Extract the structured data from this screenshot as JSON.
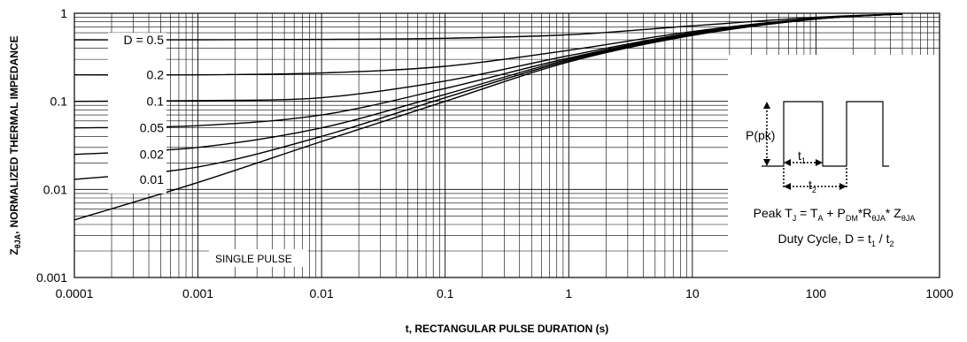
{
  "chart_data": {
    "type": "line",
    "xlabel": "t, RECTANGULAR PULSE DURATION (s)",
    "ylabel": "NORMALIZED THERMAL IMPEDANCE",
    "ylabel_symbol": "Z",
    "ylabel_symbol_sub": "θJA",
    "ylabel_sep": ",",
    "x_scale": "log",
    "y_scale": "log",
    "xlim": [
      0.0001,
      1000
    ],
    "ylim": [
      0.001,
      1
    ],
    "grid": true,
    "x_ticks": [
      {
        "value": 0.0001,
        "label": "0.0001"
      },
      {
        "value": 0.001,
        "label": "0.001"
      },
      {
        "value": 0.01,
        "label": "0.01"
      },
      {
        "value": 0.1,
        "label": "0.1"
      },
      {
        "value": 1,
        "label": "1"
      },
      {
        "value": 10,
        "label": "10"
      },
      {
        "value": 100,
        "label": "100"
      },
      {
        "value": 1000,
        "label": "1000"
      }
    ],
    "y_ticks": [
      {
        "value": 1,
        "label": "1"
      },
      {
        "value": 0.1,
        "label": "0.1"
      },
      {
        "value": 0.01,
        "label": "0.01"
      },
      {
        "value": 0.001,
        "label": "0.001"
      }
    ],
    "legend_prefix": "D = ",
    "series": [
      {
        "name": "0.5",
        "label_y": 0.5,
        "x": [
          0.0001,
          0.001,
          0.01,
          0.1,
          1,
          10,
          100,
          500
        ],
        "values": [
          0.5,
          0.5,
          0.505,
          0.52,
          0.57,
          0.72,
          0.9,
          0.98
        ]
      },
      {
        "name": "0.2",
        "label_y": 0.2,
        "x": [
          0.0001,
          0.001,
          0.01,
          0.1,
          1,
          10,
          100,
          500
        ],
        "values": [
          0.2,
          0.2,
          0.21,
          0.25,
          0.38,
          0.62,
          0.88,
          0.98
        ]
      },
      {
        "name": "0.1",
        "label_y": 0.1,
        "x": [
          0.0001,
          0.001,
          0.01,
          0.1,
          1,
          10,
          100,
          500
        ],
        "values": [
          0.1,
          0.102,
          0.11,
          0.17,
          0.33,
          0.6,
          0.87,
          0.98
        ]
      },
      {
        "name": "0.05",
        "label_y": 0.05,
        "x": [
          0.0001,
          0.001,
          0.01,
          0.1,
          1,
          10,
          100,
          500
        ],
        "values": [
          0.05,
          0.053,
          0.07,
          0.14,
          0.31,
          0.59,
          0.87,
          0.98
        ]
      },
      {
        "name": "0.02",
        "label_y": 0.025,
        "x": [
          0.0001,
          0.001,
          0.01,
          0.1,
          1,
          10,
          100,
          500
        ],
        "values": [
          0.025,
          0.03,
          0.05,
          0.12,
          0.3,
          0.58,
          0.86,
          0.98
        ]
      },
      {
        "name": "0.01",
        "label_y": 0.013,
        "x": [
          0.0001,
          0.001,
          0.01,
          0.1,
          1,
          10,
          100,
          500
        ],
        "values": [
          0.013,
          0.018,
          0.04,
          0.11,
          0.29,
          0.57,
          0.86,
          0.98
        ]
      },
      {
        "name": "SINGLE PULSE",
        "x": [
          0.0001,
          0.001,
          0.01,
          0.1,
          1,
          10,
          100,
          500
        ],
        "values": [
          0.0045,
          0.012,
          0.035,
          0.1,
          0.28,
          0.56,
          0.86,
          0.98
        ]
      }
    ],
    "annotations": {
      "single_pulse": "SINGLE PULSE",
      "ppk_main": "P(pk)",
      "t1_main": "t",
      "t1_sub": "1",
      "t2_main": "t",
      "t2_sub": "2",
      "eq": {
        "a": "Peak T",
        "a_sub": "J",
        "b": " = T",
        "b_sub": "A",
        "c": " + P",
        "c_sub": "DM",
        "d": "*R",
        "d_sub": "θJA",
        "e": "* Z",
        "e_sub": "θJA"
      },
      "duty": {
        "a": "Duty Cycle, D = t",
        "a_sub": "1",
        "b": " / t",
        "b_sub": "2"
      }
    }
  }
}
